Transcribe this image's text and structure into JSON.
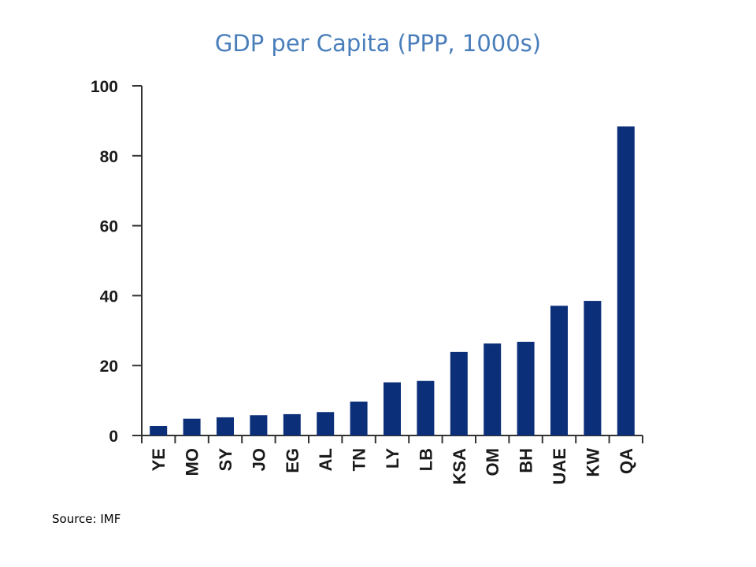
{
  "slide": {
    "title": "GDP per Capita (PPP, 1000s)",
    "source": "Source: IMF"
  },
  "colors": {
    "title": "#4a7ebb",
    "bar": "#0c2f7a",
    "axis": "#333333"
  },
  "chart_data": {
    "type": "bar",
    "title": "",
    "xlabel": "",
    "ylabel": "",
    "categories": [
      "YE",
      "MO",
      "SY",
      "JO",
      "EG",
      "AL",
      "TN",
      "LY",
      "LB",
      "KSA",
      "OM",
      "BH",
      "UAE",
      "KW",
      "QA"
    ],
    "values": [
      2.7,
      4.8,
      5.2,
      5.8,
      6.1,
      6.7,
      9.7,
      15.2,
      15.6,
      23.9,
      26.3,
      26.8,
      37.1,
      38.5,
      88.4
    ],
    "ylim": [
      0,
      100
    ],
    "yticks": [
      0,
      20,
      40,
      60,
      80,
      100
    ],
    "grid": false,
    "legend": "none",
    "category_label_orientation": "vertical"
  }
}
